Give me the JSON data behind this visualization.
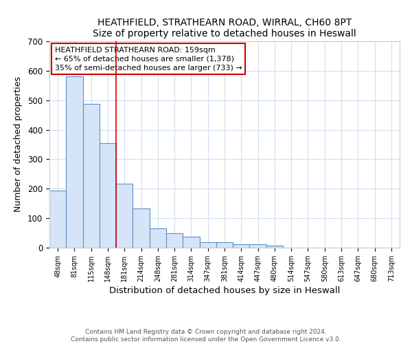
{
  "title1": "HEATHFIELD, STRATHEARN ROAD, WIRRAL, CH60 8PT",
  "title2": "Size of property relative to detached houses in Heswall",
  "xlabel": "Distribution of detached houses by size in Heswall",
  "ylabel": "Number of detached properties",
  "categories": [
    "48sqm",
    "81sqm",
    "115sqm",
    "148sqm",
    "181sqm",
    "214sqm",
    "248sqm",
    "281sqm",
    "314sqm",
    "347sqm",
    "381sqm",
    "414sqm",
    "447sqm",
    "480sqm",
    "514sqm",
    "547sqm",
    "580sqm",
    "613sqm",
    "647sqm",
    "680sqm",
    "713sqm"
  ],
  "values": [
    193,
    580,
    487,
    355,
    218,
    133,
    65,
    48,
    37,
    18,
    18,
    12,
    12,
    6,
    0,
    0,
    0,
    0,
    0,
    0,
    0
  ],
  "bar_color": "#d6e4f7",
  "bar_edge_color": "#5b8fc9",
  "ylim": [
    0,
    700
  ],
  "yticks": [
    0,
    100,
    200,
    300,
    400,
    500,
    600,
    700
  ],
  "red_line_index": 3.5,
  "legend_title": "HEATHFIELD STRATHEARN ROAD: 159sqm",
  "legend_line1": "← 65% of detached houses are smaller (1,378)",
  "legend_line2": "35% of semi-detached houses are larger (733) →",
  "background_color": "#ffffff",
  "grid_color": "#d0ddf0",
  "footer": "Contains HM Land Registry data © Crown copyright and database right 2024.\nContains public sector information licensed under the Open Government Licence v3.0."
}
